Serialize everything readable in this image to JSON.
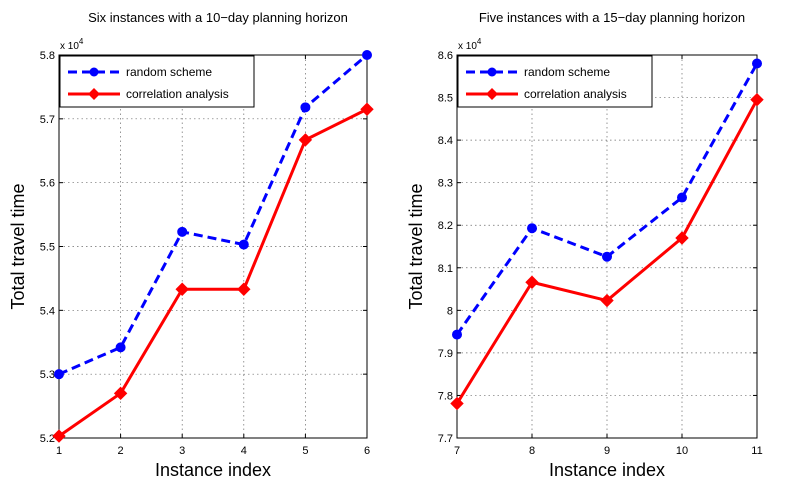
{
  "chart_data": [
    {
      "type": "line",
      "title": "Six instances with a 10−day planning horizon",
      "xlabel": "Instance index",
      "ylabel": "Total travel time",
      "y_exponent_label": "x 10",
      "y_exponent_power": "4",
      "x": [
        1,
        2,
        3,
        4,
        5,
        6
      ],
      "xlim": [
        1,
        6
      ],
      "ylim": [
        5.2,
        5.8
      ],
      "xticks": [
        "1",
        "2",
        "3",
        "4",
        "5",
        "6"
      ],
      "yticks": [
        "5.2",
        "5.3",
        "5.4",
        "5.5",
        "5.6",
        "5.7",
        "5.8"
      ],
      "grid": true,
      "legend_position": "top-left",
      "series": [
        {
          "name": "random scheme",
          "values": [
            5.3,
            5.342,
            5.523,
            5.503,
            5.718,
            5.8
          ],
          "color": "#0000ff",
          "style": "dashed",
          "marker": "circle"
        },
        {
          "name": "correlation analysis",
          "values": [
            5.203,
            5.27,
            5.433,
            5.433,
            5.667,
            5.715
          ],
          "color": "#ff0000",
          "style": "solid",
          "marker": "diamond"
        }
      ]
    },
    {
      "type": "line",
      "title": "Five instances with a 15−day planning horizon",
      "xlabel": "Instance index",
      "ylabel": "Total travel time",
      "y_exponent_label": "x 10",
      "y_exponent_power": "4",
      "x": [
        7,
        8,
        9,
        10,
        11
      ],
      "xlim": [
        7,
        11
      ],
      "ylim": [
        7.7,
        8.6
      ],
      "xticks": [
        "7",
        "8",
        "9",
        "10",
        "11"
      ],
      "yticks": [
        "7.7",
        "7.8",
        "7.9",
        "8",
        "8.1",
        "8.2",
        "8.3",
        "8.4",
        "8.5",
        "8.6"
      ],
      "grid": true,
      "legend_position": "top-left",
      "series": [
        {
          "name": "random scheme",
          "values": [
            7.943,
            8.193,
            8.126,
            8.265,
            8.58
          ],
          "color": "#0000ff",
          "style": "dashed",
          "marker": "circle"
        },
        {
          "name": "correlation analysis",
          "values": [
            7.781,
            8.066,
            8.023,
            8.17,
            8.495
          ],
          "color": "#ff0000",
          "style": "solid",
          "marker": "diamond"
        }
      ]
    }
  ]
}
